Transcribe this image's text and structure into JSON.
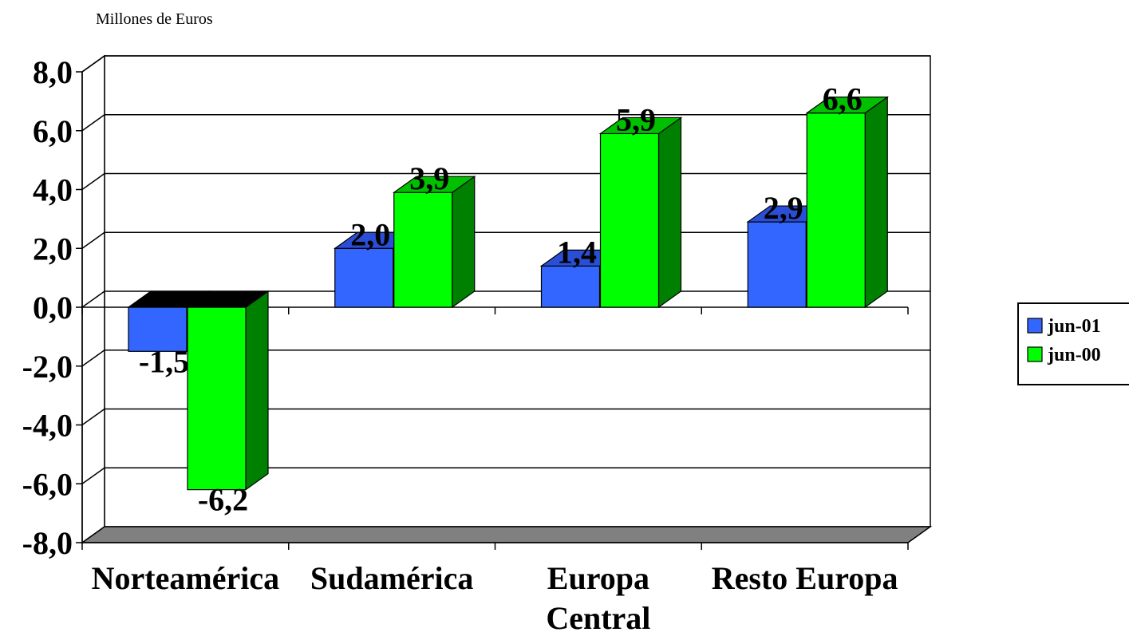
{
  "chart_data": {
    "type": "bar",
    "unit_label": "Millones de Euros",
    "categories": [
      "Norteamérica",
      "Sudamérica",
      "Europa Central",
      "Resto Europa"
    ],
    "category_lines": [
      [
        "Norteamérica"
      ],
      [
        "Sudamérica"
      ],
      [
        "Europa",
        "Central"
      ],
      [
        "Resto Europa"
      ]
    ],
    "series": [
      {
        "name": "jun-01",
        "values": [
          -1.5,
          2.0,
          1.4,
          2.9
        ],
        "labels": [
          "-1,5",
          "2,0",
          "1,4",
          "2,9"
        ],
        "color": "#3366ff",
        "side_color": "#1a33aa",
        "top_color": "#2a4fd6"
      },
      {
        "name": "jun-00",
        "values": [
          -6.2,
          3.9,
          5.9,
          6.6
        ],
        "labels": [
          "-6,2",
          "3,9",
          "5,9",
          "6,6"
        ],
        "color": "#00ff00",
        "side_color": "#008000",
        "top_color": "#00c000"
      }
    ],
    "ylim": [
      -8,
      8
    ],
    "yticks": [
      8,
      6,
      4,
      2,
      0,
      -2,
      -4,
      -6,
      -8
    ],
    "ytick_labels": [
      "8,0",
      "6,0",
      "4,0",
      "2,0",
      "0,0",
      "-2,0",
      "-4,0",
      "-6,0",
      "-8,0"
    ],
    "grid": true,
    "legend_position": "right",
    "floor_color": "#808080"
  }
}
